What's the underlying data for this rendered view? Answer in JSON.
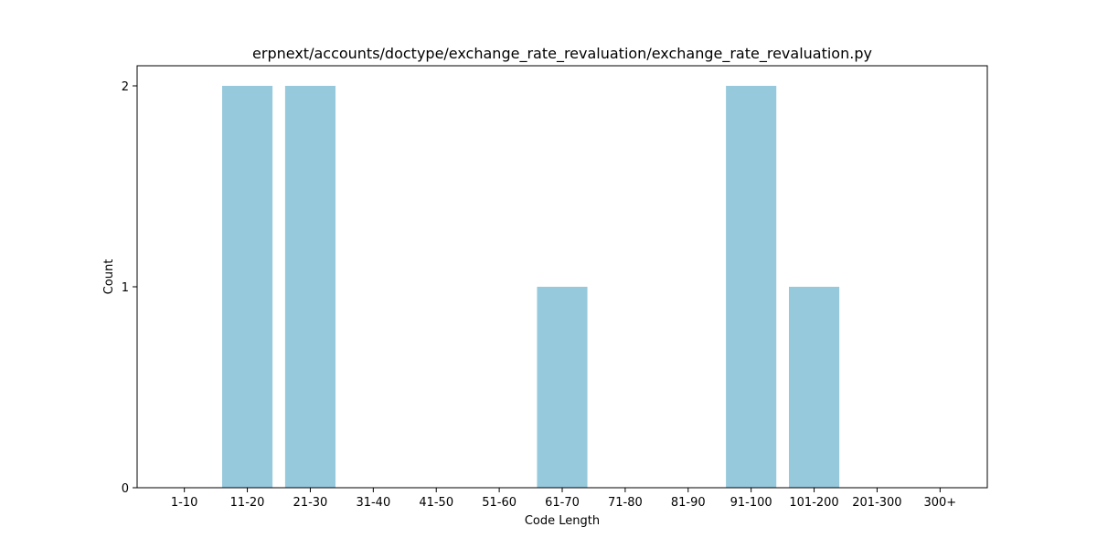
{
  "chart_data": {
    "type": "bar",
    "title": "erpnext/accounts/doctype/exchange_rate_revaluation/exchange_rate_revaluation.py",
    "xlabel": "Code Length",
    "ylabel": "Count",
    "categories": [
      "1-10",
      "11-20",
      "21-30",
      "31-40",
      "41-50",
      "51-60",
      "61-70",
      "71-80",
      "81-90",
      "91-100",
      "101-200",
      "201-300",
      "300+"
    ],
    "values": [
      0,
      2,
      2,
      0,
      0,
      0,
      1,
      0,
      0,
      2,
      1,
      0,
      0
    ],
    "yticks": [
      0,
      1,
      2
    ],
    "ylim": [
      0,
      2.1
    ],
    "bar_color": "#96c9dc",
    "grid": false,
    "legend": "none"
  }
}
